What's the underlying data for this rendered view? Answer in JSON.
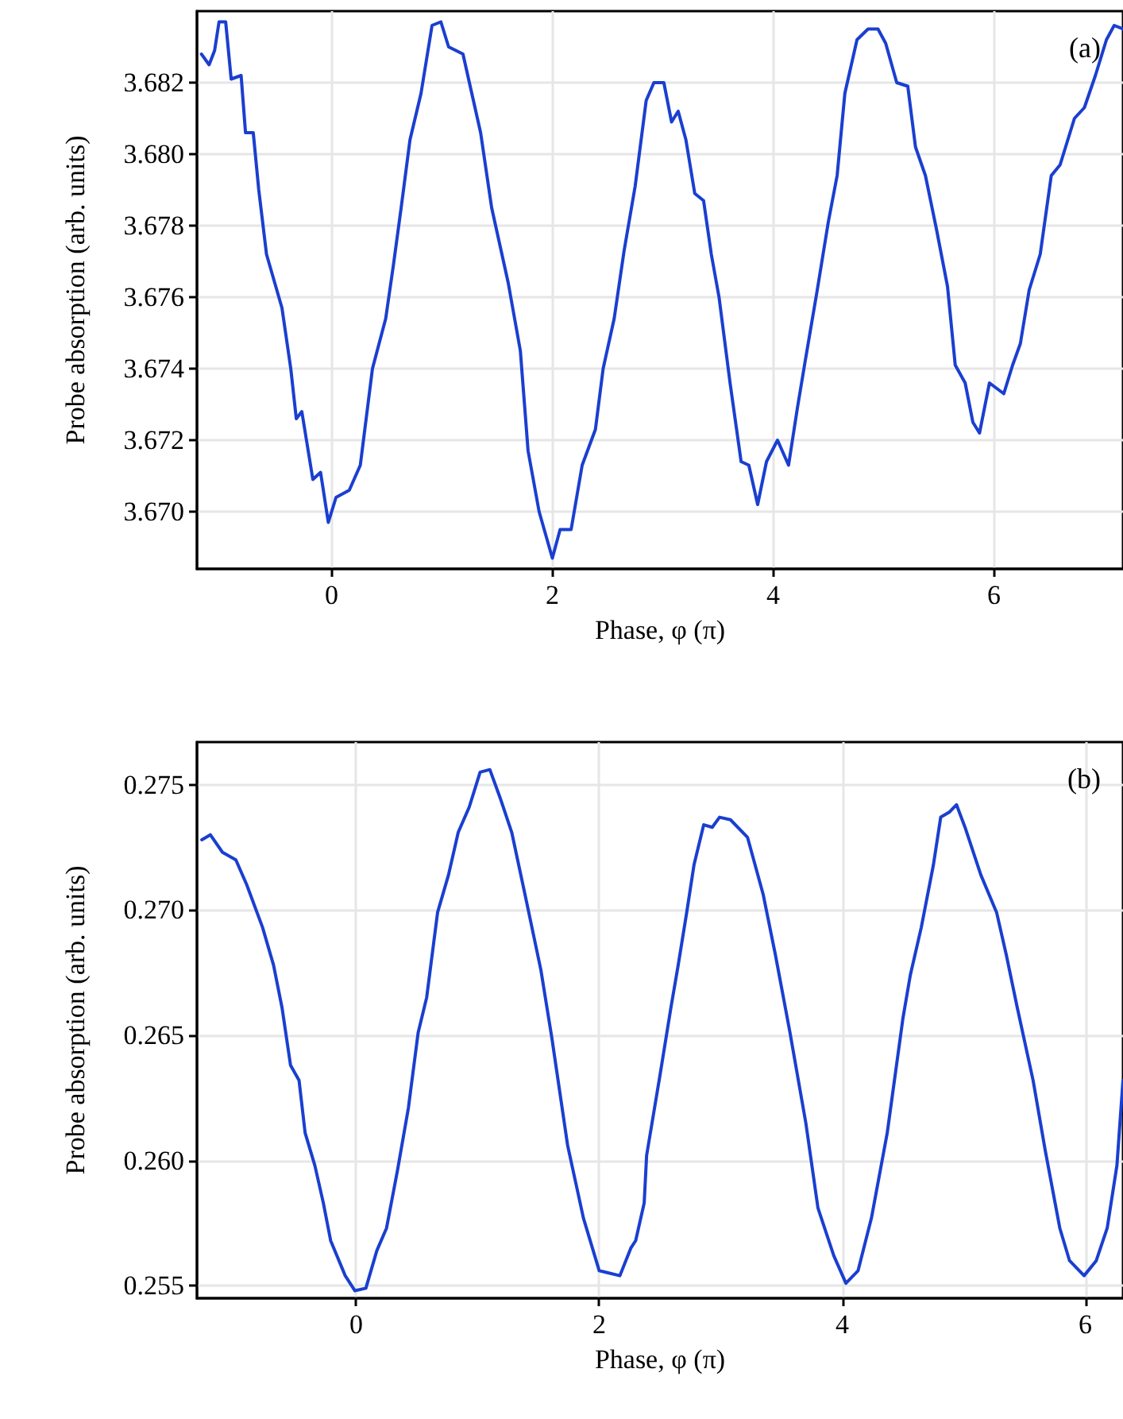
{
  "chart_data": [
    {
      "type": "line",
      "xlabel": "Phase, φ (π)",
      "ylabel": "Probe absorption (arb. units)",
      "annotations": [
        "(a)"
      ],
      "grid": true,
      "marker": "none",
      "line_style": "solid",
      "xlim": [
        -1.22,
        7.17
      ],
      "xticks": [
        0,
        2,
        4,
        6
      ],
      "ylim": [
        3.6684,
        3.684
      ],
      "yticks": [
        {
          "value": 3.67,
          "label": "3.670"
        },
        {
          "value": 3.672,
          "label": "3.672"
        },
        {
          "value": 3.674,
          "label": "3.674"
        },
        {
          "value": 3.676,
          "label": "3.676"
        },
        {
          "value": 3.678,
          "label": "3.678"
        },
        {
          "value": 3.68,
          "label": "3.680"
        },
        {
          "value": 3.682,
          "label": "3.682"
        }
      ],
      "series": [
        {
          "color": "#1a3fd0",
          "x": [
            -1.18,
            -1.11,
            -1.06,
            -1.02,
            -0.96,
            -0.91,
            -0.82,
            -0.78,
            -0.71,
            -0.66,
            -0.59,
            -0.45,
            -0.37,
            -0.32,
            -0.27,
            -0.17,
            -0.1,
            -0.03,
            0.04,
            0.16,
            0.26,
            0.37,
            0.49,
            0.56,
            0.63,
            0.71,
            0.81,
            0.91,
            0.99,
            1.06,
            1.19,
            1.27,
            1.35,
            1.45,
            1.6,
            1.71,
            1.78,
            1.88,
            2.0,
            2.07,
            2.17,
            2.27,
            2.39,
            2.46,
            2.56,
            2.65,
            2.75,
            2.85,
            2.92,
            3.01,
            3.08,
            3.14,
            3.21,
            3.29,
            3.37,
            3.44,
            3.51,
            3.61,
            3.71,
            3.78,
            3.86,
            3.94,
            4.04,
            4.14,
            4.22,
            4.29,
            4.4,
            4.5,
            4.58,
            4.65,
            4.76,
            4.86,
            4.95,
            5.02,
            5.12,
            5.22,
            5.29,
            5.38,
            5.48,
            5.58,
            5.65,
            5.74,
            5.81,
            5.87,
            5.96,
            6.09,
            6.17,
            6.24,
            6.32,
            6.42,
            6.52,
            6.6,
            6.73,
            6.82,
            6.92,
            7.02,
            7.09,
            7.17
          ],
          "values": [
            3.6828,
            3.6825,
            3.6829,
            3.6837,
            3.6837,
            3.6821,
            3.6822,
            3.6806,
            3.6806,
            3.679,
            3.6772,
            3.6757,
            3.674,
            3.6726,
            3.6728,
            3.6709,
            3.6711,
            3.6697,
            3.6704,
            3.6706,
            3.6713,
            3.674,
            3.6754,
            3.6769,
            3.6785,
            3.6804,
            3.6817,
            3.6836,
            3.6837,
            3.683,
            3.6828,
            3.6817,
            3.6806,
            3.6785,
            3.6764,
            3.6745,
            3.6717,
            3.67,
            3.6687,
            3.6695,
            3.6695,
            3.6713,
            3.6723,
            3.674,
            3.6754,
            3.6773,
            3.6791,
            3.6815,
            3.682,
            3.682,
            3.6809,
            3.6812,
            3.6804,
            3.6789,
            3.6787,
            3.6772,
            3.676,
            3.6736,
            3.6714,
            3.6713,
            3.6702,
            3.6714,
            3.672,
            3.6713,
            3.6729,
            3.6742,
            3.6762,
            3.6781,
            3.6794,
            3.6817,
            3.6832,
            3.6835,
            3.6835,
            3.6831,
            3.682,
            3.6819,
            3.6802,
            3.6794,
            3.6779,
            3.6763,
            3.6741,
            3.6736,
            3.6725,
            3.6722,
            3.6736,
            3.6733,
            3.6741,
            3.6747,
            3.6762,
            3.6772,
            3.6794,
            3.6797,
            3.681,
            3.6813,
            3.6822,
            3.6832,
            3.6836,
            3.6835
          ]
        }
      ]
    },
    {
      "type": "line",
      "xlabel": "Phase, φ (π)",
      "ylabel": "Probe absorption (arb. units)",
      "annotations": [
        "(b)"
      ],
      "grid": true,
      "marker": "none",
      "line_style": "solid",
      "xlim": [
        -1.31,
        6.31
      ],
      "xticks": [
        0,
        2,
        4,
        6
      ],
      "ylim": [
        0.2545,
        0.2767
      ],
      "yticks": [
        0.255,
        {
          "value": 0.26,
          "label": "0.260"
        },
        0.265,
        {
          "value": 0.27,
          "label": "0.270"
        },
        0.275
      ],
      "series": [
        {
          "color": "#1a3fd0",
          "x": [
            -1.27,
            -1.2,
            -1.1,
            -0.99,
            -0.9,
            -0.77,
            -0.68,
            -0.61,
            -0.54,
            -0.47,
            -0.42,
            -0.34,
            -0.27,
            -0.21,
            -0.09,
            -0.01,
            0.08,
            0.17,
            0.25,
            0.34,
            0.43,
            0.51,
            0.58,
            0.67,
            0.76,
            0.84,
            0.93,
            1.02,
            1.1,
            1.19,
            1.28,
            1.39,
            1.52,
            1.61,
            1.74,
            1.87,
            2.0,
            2.17,
            2.26,
            2.3,
            2.37,
            2.39,
            2.5,
            2.59,
            2.65,
            2.72,
            2.78,
            2.86,
            2.93,
            2.99,
            3.08,
            3.22,
            3.35,
            3.45,
            3.57,
            3.7,
            3.8,
            3.93,
            4.03,
            4.13,
            4.24,
            4.37,
            4.5,
            4.56,
            4.65,
            4.75,
            4.81,
            4.88,
            4.94,
            5.01,
            5.14,
            5.27,
            5.35,
            5.44,
            5.57,
            5.67,
            5.79,
            5.87,
            5.99,
            6.09,
            6.18,
            6.26,
            6.31
          ],
          "values": [
            0.2728,
            0.273,
            0.2723,
            0.272,
            0.271,
            0.2693,
            0.2678,
            0.2661,
            0.2638,
            0.2632,
            0.2611,
            0.2598,
            0.2583,
            0.2568,
            0.2554,
            0.2548,
            0.2549,
            0.2564,
            0.2573,
            0.2596,
            0.2621,
            0.2651,
            0.2665,
            0.2699,
            0.2714,
            0.2731,
            0.2741,
            0.2755,
            0.2756,
            0.2744,
            0.2731,
            0.2706,
            0.2676,
            0.2649,
            0.2606,
            0.2577,
            0.2556,
            0.2554,
            0.2565,
            0.2568,
            0.2583,
            0.2602,
            0.2634,
            0.2661,
            0.2678,
            0.2699,
            0.2718,
            0.2734,
            0.2733,
            0.2737,
            0.2736,
            0.2729,
            0.2706,
            0.2682,
            0.2651,
            0.2615,
            0.2581,
            0.2562,
            0.2551,
            0.2556,
            0.2577,
            0.2611,
            0.2657,
            0.2674,
            0.2693,
            0.2718,
            0.2737,
            0.2739,
            0.2742,
            0.2733,
            0.2714,
            0.2699,
            0.2682,
            0.2661,
            0.2632,
            0.2604,
            0.2573,
            0.256,
            0.2554,
            0.256,
            0.2573,
            0.2598,
            0.2632
          ]
        }
      ]
    }
  ]
}
